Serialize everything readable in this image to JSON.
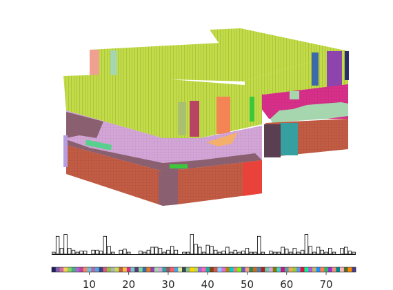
{
  "chart_data": [
    {
      "type": "3d-voxel-grid",
      "description_colors": {
        "top_face": "#c2dc48",
        "upper_layer_side": "#d4a6d8",
        "pink_band": "#d8308a",
        "mauve_band": "#8a6070",
        "lower_layer_side": "#c25c44",
        "streak_red": "#b84464",
        "streak_orange": "#f48454",
        "streak_green": "#3cc83c",
        "streak_purple": "#8e44ad",
        "streak_blue": "#3e69a8",
        "teal_patch": "#36a0a0",
        "mint_patch": "#a6d6ae"
      }
    },
    {
      "type": "bar",
      "x": [
        1,
        2,
        3,
        4,
        5,
        6,
        7,
        8,
        9,
        10,
        11,
        12,
        13,
        14,
        15,
        16,
        17,
        18,
        19,
        20,
        21,
        22,
        23,
        24,
        25,
        26,
        27,
        28,
        29,
        30,
        31,
        32,
        33,
        34,
        35,
        36,
        37,
        38,
        39,
        40,
        41,
        42,
        43,
        44,
        45,
        46,
        47,
        48,
        49,
        50,
        51,
        52,
        53,
        54,
        55,
        56,
        57,
        58,
        59,
        60,
        61,
        62,
        63,
        64,
        65,
        66,
        67,
        68,
        69,
        70,
        71,
        72,
        73,
        74,
        75,
        76,
        77
      ],
      "values": [
        0.1,
        0.9,
        0.3,
        1.0,
        0.3,
        0.2,
        0.1,
        0.15,
        0.15,
        0,
        0.2,
        0.2,
        0.15,
        0.9,
        0.4,
        0.1,
        0,
        0.2,
        0.25,
        0.1,
        0,
        0,
        0.15,
        0.1,
        0.2,
        0.35,
        0.35,
        0.3,
        0.1,
        0.2,
        0.4,
        0.2,
        0,
        0.1,
        0.1,
        1.0,
        0.5,
        0.35,
        0.1,
        0.45,
        0.4,
        0.2,
        0.1,
        0.15,
        0.35,
        0.1,
        0.2,
        0.1,
        0.15,
        0.3,
        0.1,
        0.1,
        0.9,
        0.1,
        0,
        0.15,
        0.1,
        0.1,
        0.35,
        0.25,
        0.1,
        0.3,
        0.1,
        0.2,
        1.0,
        0.4,
        0.1,
        0.35,
        0.2,
        0.1,
        0.3,
        0.1,
        0,
        0.3,
        0.35,
        0.15,
        0.1
      ],
      "ylim": [
        0,
        1.05
      ]
    },
    {
      "type": "colorbar",
      "ticks": [
        "10",
        "20",
        "30",
        "40",
        "50",
        "60",
        "70"
      ],
      "tick_values": [
        10,
        20,
        30,
        40,
        50,
        60,
        70
      ],
      "xlim": [
        0.5,
        77.5
      ],
      "colors": [
        "#1f1f5a",
        "#7b5fa8",
        "#d16aa5",
        "#f0d255",
        "#8cd06b",
        "#46b07a",
        "#a56ad8",
        "#c0449b",
        "#ef8b6c",
        "#6fbfd1",
        "#b06ab0",
        "#5aa2d9",
        "#3d3f88",
        "#dc5c7a",
        "#90c247",
        "#b2b2b2",
        "#c1e05a",
        "#c25c44",
        "#f5c242",
        "#d8308a",
        "#71c9c2",
        "#5b3a75",
        "#7fd8a0",
        "#3e69a8",
        "#e67e22",
        "#8e44ad",
        "#a6d6ae",
        "#d4a6d8",
        "#36a0a0",
        "#8a6070",
        "#ff5e5e",
        "#4aa8e0",
        "#e8e8a0",
        "#2f4f4f",
        "#8fbc8f",
        "#ffd700",
        "#c2dc48",
        "#9370db",
        "#ff69b4",
        "#20b2aa",
        "#8b4513",
        "#cd5c5c",
        "#87cefa",
        "#da70d6",
        "#b8860b",
        "#00ced1",
        "#f08080",
        "#7cfc00",
        "#6a5acd",
        "#ffa07a",
        "#2e8b57",
        "#d2691e",
        "#4682b4",
        "#b22222",
        "#66cdaa",
        "#dda0dd",
        "#808000",
        "#48d1cc",
        "#c71585",
        "#5f9ea0",
        "#f4a460",
        "#9acd32",
        "#6495ed",
        "#dc143c",
        "#00fa9a",
        "#ba55d3",
        "#bdb76b",
        "#1e90ff",
        "#ff7f50",
        "#3cb371",
        "#9932cc",
        "#e9967a",
        "#008b8b",
        "#ffb6c1",
        "#556b2f",
        "#ff8c00",
        "#483d8b"
      ]
    }
  ]
}
